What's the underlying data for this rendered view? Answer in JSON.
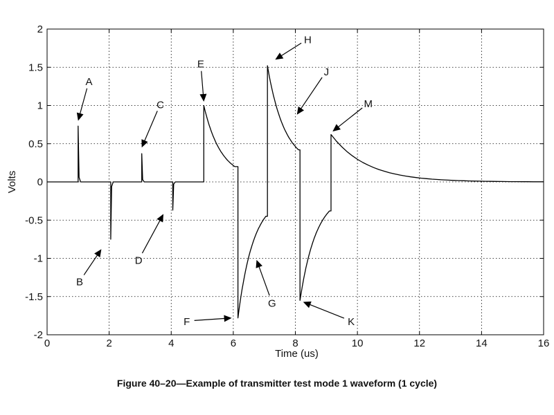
{
  "caption": "Figure 40–20—Example of transmitter test mode 1 waveform (1 cycle)",
  "chart_data": {
    "type": "line",
    "title": "",
    "xlabel": "Time (us)",
    "ylabel": "Volts",
    "xlim": [
      0,
      16
    ],
    "ylim": [
      -2,
      2
    ],
    "xticks": [
      0,
      2,
      4,
      6,
      8,
      10,
      12,
      14,
      16
    ],
    "xtick_labels": [
      "0",
      "2",
      "4",
      "6",
      "8",
      "10",
      "12",
      "14",
      "16"
    ],
    "yticks": [
      2,
      1.5,
      1,
      0.5,
      0,
      -0.5,
      -1,
      -1.5,
      -2
    ],
    "ytick_labels": [
      "2",
      "1.5",
      "1",
      "0.5",
      "0",
      "-0.5",
      "-1",
      "-1.5",
      "-2"
    ],
    "grid": true,
    "line_color": "#000000",
    "series": [
      {
        "name": "",
        "pulses": [
          {
            "t": 1.0,
            "v": 0.73
          },
          {
            "t": 2.05,
            "v": -0.75
          },
          {
            "t": 3.05,
            "v": 0.37
          },
          {
            "t": 4.05,
            "v": -0.37
          }
        ],
        "segments": [
          {
            "t0": 5.05,
            "t1": 6.05,
            "v_start": 1.0,
            "v_end": 0.2
          },
          {
            "t0": 6.15,
            "t1": 7.05,
            "v_start": -1.78,
            "v_end": -0.45
          },
          {
            "t0": 7.1,
            "t1": 8.1,
            "v_start": 1.52,
            "v_end": 0.42
          },
          {
            "t0": 8.15,
            "t1": 9.1,
            "v_start": -1.55,
            "v_end": -0.38
          },
          {
            "t0": 9.15,
            "t1": 16.0,
            "v_start": 0.62,
            "v_end": 0.0
          }
        ]
      }
    ],
    "annotations": [
      {
        "label": "A",
        "lx": 1.35,
        "ly": 1.32,
        "ax": 1.0,
        "ay": 0.8
      },
      {
        "label": "B",
        "lx": 1.05,
        "ly": -1.3,
        "ax": 1.75,
        "ay": -0.88
      },
      {
        "label": "C",
        "lx": 3.65,
        "ly": 1.02,
        "ax": 3.05,
        "ay": 0.45
      },
      {
        "label": "D",
        "lx": 2.95,
        "ly": -1.02,
        "ax": 3.75,
        "ay": -0.42
      },
      {
        "label": "E",
        "lx": 4.95,
        "ly": 1.55,
        "ax": 5.05,
        "ay": 1.05
      },
      {
        "label": "F",
        "lx": 4.5,
        "ly": -1.82,
        "ax": 5.95,
        "ay": -1.78
      },
      {
        "label": "G",
        "lx": 7.25,
        "ly": -1.58,
        "ax": 6.75,
        "ay": -1.02
      },
      {
        "label": "H",
        "lx": 8.4,
        "ly": 1.87,
        "ax": 7.35,
        "ay": 1.6
      },
      {
        "label": "J",
        "lx": 9.0,
        "ly": 1.45,
        "ax": 8.05,
        "ay": 0.88
      },
      {
        "label": "K",
        "lx": 9.8,
        "ly": -1.82,
        "ax": 8.25,
        "ay": -1.57
      },
      {
        "label": "M",
        "lx": 10.35,
        "ly": 1.03,
        "ax": 9.2,
        "ay": 0.66
      }
    ]
  }
}
